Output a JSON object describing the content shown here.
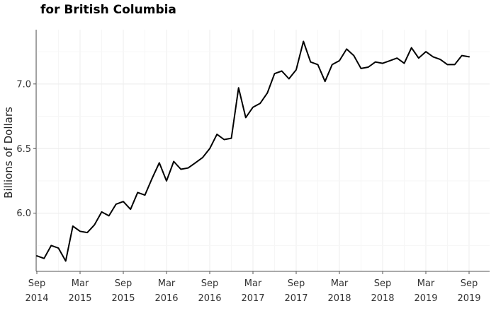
{
  "chart_data": {
    "type": "line",
    "title": "for British Columbia",
    "xlabel": "",
    "ylabel": "Billions of Dollars",
    "x_ticks": [
      {
        "date": "2014-09",
        "line1": "Sep",
        "line2": "2014"
      },
      {
        "date": "2015-03",
        "line1": "Mar",
        "line2": "2015"
      },
      {
        "date": "2015-09",
        "line1": "Sep",
        "line2": "2015"
      },
      {
        "date": "2016-03",
        "line1": "Mar",
        "line2": "2016"
      },
      {
        "date": "2016-09",
        "line1": "Sep",
        "line2": "2016"
      },
      {
        "date": "2017-03",
        "line1": "Mar",
        "line2": "2017"
      },
      {
        "date": "2017-09",
        "line1": "Sep",
        "line2": "2017"
      },
      {
        "date": "2018-03",
        "line1": "Mar",
        "line2": "2018"
      },
      {
        "date": "2018-09",
        "line1": "Sep",
        "line2": "2018"
      },
      {
        "date": "2019-03",
        "line1": "Mar",
        "line2": "2019"
      },
      {
        "date": "2019-09",
        "line1": "Sep",
        "line2": "2019"
      }
    ],
    "y_ticks": [
      6.0,
      6.5,
      7.0
    ],
    "y_tick_labels": [
      "6.0",
      "6.5",
      "7.0"
    ],
    "xlim": [
      "2014-09",
      "2019-12"
    ],
    "ylim": [
      5.55,
      7.42
    ],
    "grid": true,
    "line_color": "#000000",
    "series": [
      {
        "x": [
          "2014-09",
          "2014-10",
          "2014-11",
          "2014-12",
          "2015-01",
          "2015-02",
          "2015-03",
          "2015-04",
          "2015-05",
          "2015-06",
          "2015-07",
          "2015-08",
          "2015-09",
          "2015-10",
          "2015-11",
          "2015-12",
          "2016-01",
          "2016-02",
          "2016-03",
          "2016-04",
          "2016-05",
          "2016-06",
          "2016-07",
          "2016-08",
          "2016-09",
          "2016-10",
          "2016-11",
          "2016-12",
          "2017-01",
          "2017-02",
          "2017-03",
          "2017-04",
          "2017-05",
          "2017-06",
          "2017-07",
          "2017-08",
          "2017-09",
          "2017-10",
          "2017-11",
          "2017-12",
          "2018-01",
          "2018-02",
          "2018-03",
          "2018-04",
          "2018-05",
          "2018-06",
          "2018-07",
          "2018-08",
          "2018-09",
          "2018-10",
          "2018-11",
          "2018-12",
          "2019-01",
          "2019-02",
          "2019-03",
          "2019-04",
          "2019-05",
          "2019-06",
          "2019-07",
          "2019-08",
          "2019-09"
        ],
        "values": [
          5.67,
          5.65,
          5.75,
          5.73,
          5.63,
          5.9,
          5.86,
          5.85,
          5.91,
          6.01,
          5.98,
          6.07,
          6.09,
          6.03,
          6.16,
          6.14,
          6.27,
          6.39,
          6.25,
          6.4,
          6.34,
          6.35,
          6.39,
          6.43,
          6.5,
          6.61,
          6.57,
          6.58,
          6.97,
          6.74,
          6.82,
          6.85,
          6.93,
          7.08,
          7.1,
          7.04,
          7.11,
          7.33,
          7.17,
          7.15,
          7.02,
          7.15,
          7.18,
          7.27,
          7.22,
          7.12,
          7.13,
          7.17,
          7.16,
          7.18,
          7.2,
          7.16,
          7.28,
          7.2,
          7.25,
          7.21,
          7.19,
          7.15,
          7.15,
          7.22,
          7.21
        ]
      }
    ]
  }
}
